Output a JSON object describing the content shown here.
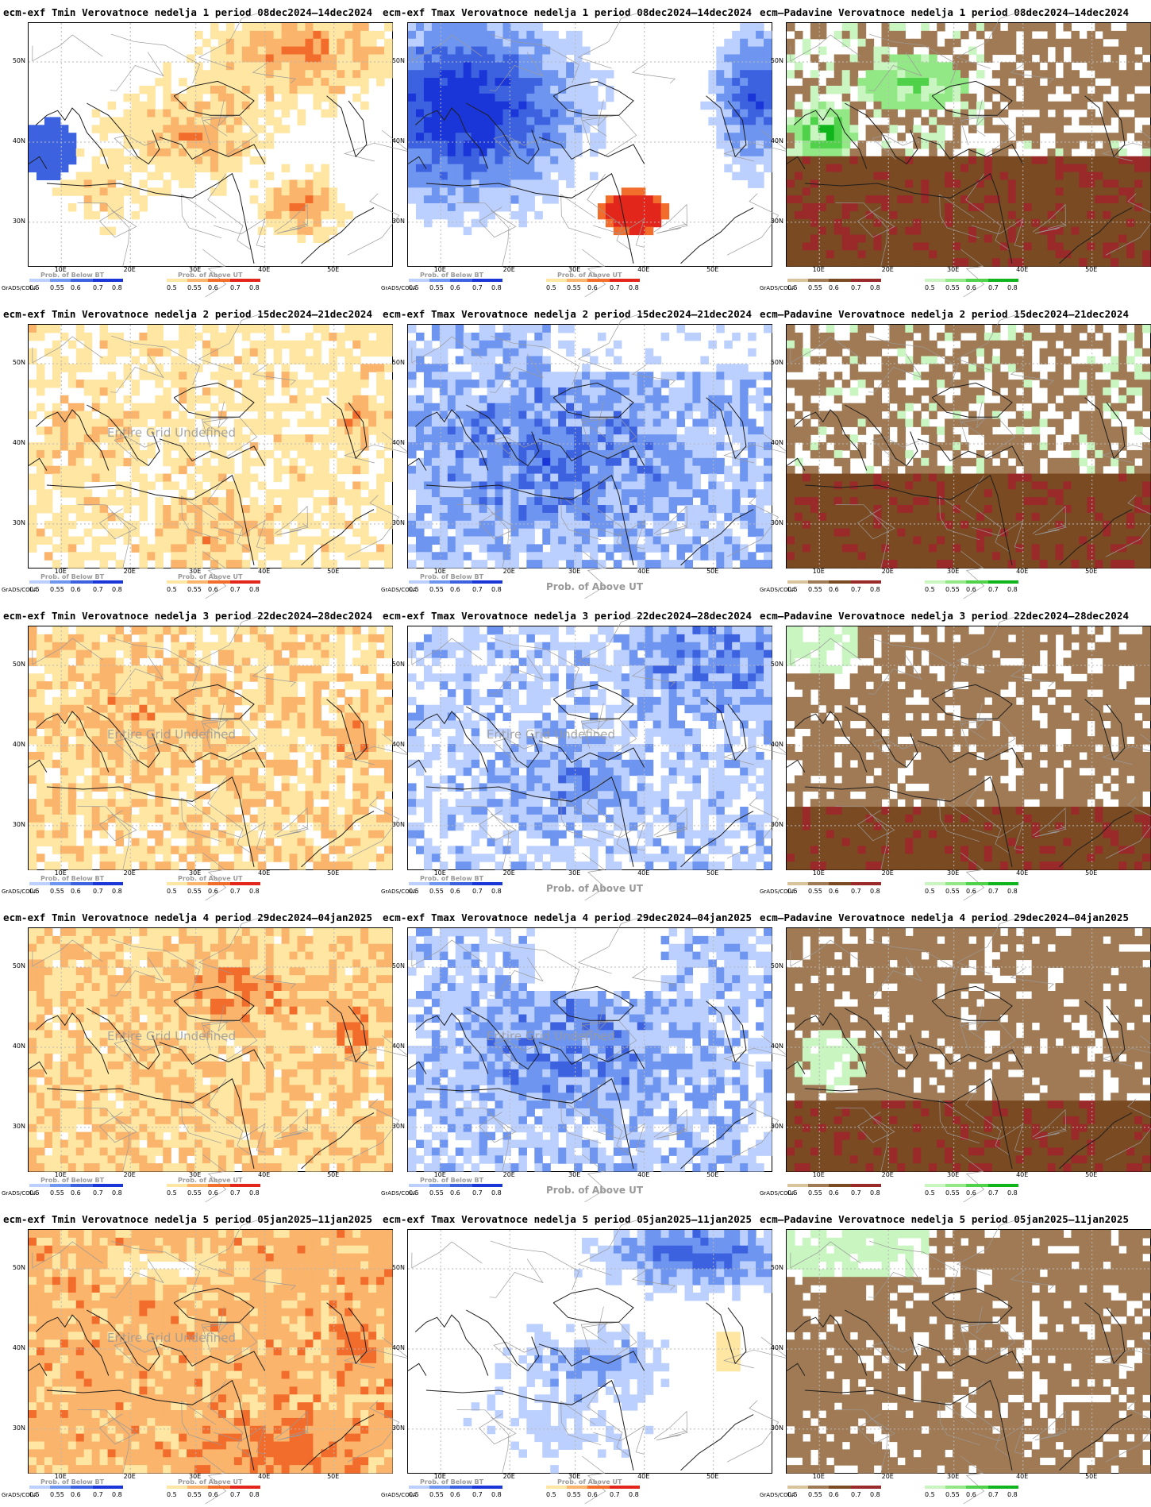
{
  "page": {
    "brand": "GrADS/COLA"
  },
  "colorbars": {
    "below": {
      "title": "Prob. of Below BT",
      "ticks": [
        "0.5",
        "0.55",
        "0.6",
        "0.7",
        "0.8"
      ],
      "colors": [
        "#bcd0ff",
        "#6e95f0",
        "#3c62e0",
        "#1a36d8"
      ]
    },
    "above": {
      "title": "Prob. of Above UT",
      "ticks": [
        "0.5",
        "0.55",
        "0.6",
        "0.7",
        "0.8"
      ],
      "colors": [
        "#ffe7a3",
        "#fab46b",
        "#f26d2c",
        "#e3261b"
      ]
    },
    "dry": {
      "ticks": [
        "0.5",
        "0.55",
        "0.6",
        "0.7",
        "0.8"
      ],
      "colors": [
        "#d8c39a",
        "#a07a54",
        "#7a4a22",
        "#9a2a2a"
      ]
    },
    "wet": {
      "ticks": [
        "0.5",
        "0.55",
        "0.6",
        "0.7",
        "0.8"
      ],
      "colors": [
        "#c8f5c0",
        "#93e886",
        "#4fd24a",
        "#0fb51b"
      ]
    }
  },
  "axis": {
    "lat_labels": [
      "50N",
      "40N",
      "30N"
    ],
    "lon_labels": [
      "10E",
      "20E",
      "30E",
      "40E",
      "50E"
    ]
  },
  "undefined_text": "Entire Grid Undefined",
  "panels": [
    {
      "row": 0,
      "col": 0,
      "title": "ecm-exf Tmin Verovatnoce nedelja 1 period 08dec2024–14dec2024",
      "mode": "tmin_bbb",
      "bars": [
        "below",
        "above"
      ]
    },
    {
      "row": 0,
      "col": 1,
      "title": "ecm-exf Tmax Verovatnoce nedelja 1 period 08dec2024–14dec2024",
      "mode": "tmax1",
      "bars": [
        "below",
        "above"
      ]
    },
    {
      "row": 0,
      "col": 2,
      "title": "ecm—Padavine Verovatnoce nedelja 1 period 08dec2024–14dec2024",
      "mode": "prec1",
      "bars": [
        "dry",
        "wet"
      ]
    },
    {
      "row": 1,
      "col": 0,
      "title": "ecm-exf Tmin Verovatnoce nedelja 2 period 15dec2024–21dec2024",
      "mode": "tmin2",
      "bars": [
        "below",
        "above"
      ],
      "undef": true
    },
    {
      "row": 1,
      "col": 1,
      "title": "ecm-exf Tmax Verovatnoce nedelja 2 period 15dec2024–21dec2024",
      "mode": "tmax2",
      "bars": [
        "below"
      ],
      "aboveLabelOnly": true
    },
    {
      "row": 1,
      "col": 2,
      "title": "ecm—Padavine Verovatnoce nedelja 2 period 15dec2024–21dec2024",
      "mode": "prec2",
      "bars": [
        "dry",
        "wet"
      ]
    },
    {
      "row": 2,
      "col": 0,
      "title": "ecm-exf Tmin Verovatnoce nedelja 3 period 22dec2024–28dec2024",
      "mode": "tmin3",
      "bars": [
        "below",
        "above"
      ],
      "undef": true
    },
    {
      "row": 2,
      "col": 1,
      "title": "ecm-exf Tmax Verovatnoce nedelja 3 period 22dec2024–28dec2024",
      "mode": "tmax3",
      "bars": [
        "below"
      ],
      "aboveLabelOnly": true,
      "undef": true
    },
    {
      "row": 2,
      "col": 2,
      "title": "ecm—Padavine Verovatnoce nedelja 3 period 22dec2024–28dec2024",
      "mode": "prec3",
      "bars": [
        "dry",
        "wet"
      ]
    },
    {
      "row": 3,
      "col": 0,
      "title": "ecm-exf Tmin Verovatnoce nedelja 4 period 29dec2024–04jan2025",
      "mode": "tmin4",
      "bars": [
        "below",
        "above"
      ],
      "undef": true
    },
    {
      "row": 3,
      "col": 1,
      "title": "ecm-exf Tmax Verovatnoce nedelja 4 period 29dec2024–04jan2025",
      "mode": "tmax4",
      "bars": [
        "below"
      ],
      "aboveLabelOnly": true,
      "undef": true
    },
    {
      "row": 3,
      "col": 2,
      "title": "ecm—Padavine Verovatnoce nedelja 4 period 29dec2024–04jan2025",
      "mode": "prec4",
      "bars": [
        "dry",
        "wet"
      ]
    },
    {
      "row": 4,
      "col": 0,
      "title": "ecm-exf Tmin Verovatnoce nedelja 5 period 05jan2025–11jan2025",
      "mode": "tmin5",
      "bars": [
        "below",
        "above"
      ],
      "undef": true
    },
    {
      "row": 4,
      "col": 1,
      "title": "ecm-exf Tmax Verovatnoce nedelja 5 period 05jan2025–11jan2025",
      "mode": "tmax5",
      "bars": [
        "below",
        "above"
      ]
    },
    {
      "row": 4,
      "col": 2,
      "title": "ecm—Padavine Verovatnoce nedelja 5 period 05jan2025–11jan2025",
      "mode": "prec5",
      "bars": [
        "dry",
        "wet"
      ]
    }
  ]
}
